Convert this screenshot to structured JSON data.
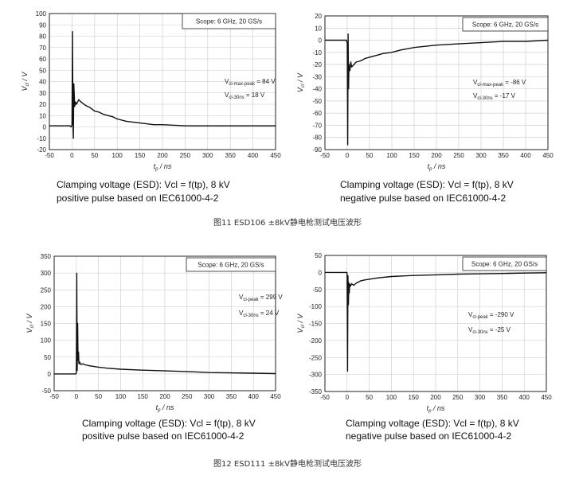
{
  "figure_captions": [
    "图11 ESD106 ±8kV静电枪测试电压波形",
    "图12 ESD111 ±8kV静电枪测试电压波形"
  ],
  "chart_data": [
    {
      "type": "line",
      "scope_label": "Scope: 6 GHz, 20 GS/s",
      "ylabel_main": "V",
      "ylabel_sub": "cl",
      "ylabel_unit": " / V",
      "xlabel_main": "t",
      "xlabel_sub": "p",
      "xlabel_unit": " / ns",
      "xlim": [
        -50,
        450
      ],
      "ylim": [
        -20,
        100
      ],
      "xticks": [
        -50,
        0,
        50,
        100,
        150,
        200,
        250,
        300,
        350,
        400,
        450
      ],
      "yticks": [
        -20,
        -10,
        0,
        10,
        20,
        30,
        40,
        50,
        60,
        70,
        80,
        90,
        100
      ],
      "annotations": [
        {
          "main": "V",
          "sub": "cl-max-peak",
          "rest": " = 84 V"
        },
        {
          "main": "V",
          "sub": "cl-30ns",
          "rest": " = 18 V"
        }
      ],
      "caption": [
        "Clamping voltage (ESD): Vcl = f(tp), 8 kV",
        "positive pulse based on IEC61000-4-2"
      ],
      "series": [
        {
          "x": [
            -50,
            -5,
            -2,
            0,
            1,
            2,
            3,
            4,
            6,
            8,
            10,
            15,
            20,
            30,
            40,
            50,
            60,
            70,
            80,
            90,
            100,
            120,
            140,
            160,
            180,
            200,
            250,
            300,
            350,
            400,
            450
          ],
          "y": [
            1,
            1,
            0,
            2,
            84,
            10,
            -10,
            38,
            18,
            22,
            20,
            24,
            22,
            19,
            17,
            14,
            13,
            11,
            10,
            9,
            7,
            5,
            4,
            3,
            2,
            2,
            1,
            1,
            1,
            1,
            1
          ]
        }
      ]
    },
    {
      "type": "line",
      "scope_label": "Scope: 6 GHz, 20 GS/s",
      "ylabel_main": "V",
      "ylabel_sub": "cl",
      "ylabel_unit": " / V",
      "xlabel_main": "t",
      "xlabel_sub": "p",
      "xlabel_unit": " / ns",
      "xlim": [
        -50,
        450
      ],
      "ylim": [
        -90,
        20
      ],
      "xticks": [
        -50,
        0,
        50,
        100,
        150,
        200,
        250,
        300,
        350,
        400,
        450
      ],
      "yticks": [
        -90,
        -80,
        -70,
        -60,
        -50,
        -40,
        -30,
        -20,
        -10,
        0,
        10,
        20
      ],
      "annotations": [
        {
          "main": "V",
          "sub": "cl-max-peak",
          "rest": " = -86 V"
        },
        {
          "main": "V",
          "sub": "cl-30ns",
          "rest": " = -17 V"
        }
      ],
      "caption": [
        "Clamping voltage (ESD): Vcl = f(tp), 8 kV",
        "negative pulse based on IEC61000-4-2"
      ],
      "series": [
        {
          "x": [
            -50,
            -5,
            -2,
            0,
            1,
            2,
            3,
            4,
            6,
            8,
            10,
            15,
            20,
            30,
            40,
            50,
            60,
            80,
            100,
            120,
            150,
            200,
            250,
            300,
            350,
            400,
            450
          ],
          "y": [
            0,
            0,
            0,
            -2,
            -86,
            5,
            -40,
            -20,
            -25,
            -18,
            -22,
            -20,
            -18,
            -17,
            -15,
            -14,
            -13,
            -11,
            -10,
            -8,
            -6,
            -4,
            -3,
            -2,
            -1,
            -1,
            0
          ]
        }
      ]
    },
    {
      "type": "line",
      "scope_label": "Scope: 6 GHz, 20 GS/s",
      "ylabel_main": "V",
      "ylabel_sub": "cl",
      "ylabel_unit": " / V",
      "xlabel_main": "t",
      "xlabel_sub": "p",
      "xlabel_unit": " / ns",
      "xlim": [
        -50,
        450
      ],
      "ylim": [
        -50,
        350
      ],
      "xticks": [
        -50,
        0,
        50,
        100,
        150,
        200,
        250,
        300,
        350,
        400,
        450
      ],
      "yticks": [
        -50,
        0,
        50,
        100,
        150,
        200,
        250,
        300,
        350
      ],
      "annotations": [
        {
          "main": "V",
          "sub": "cl-peak",
          "rest": " = 299 V"
        },
        {
          "main": "V",
          "sub": "cl-30ns",
          "rest": " = 24 V"
        }
      ],
      "caption": [
        "Clamping voltage (ESD): Vcl = f(tp), 8 kV",
        "positive pulse based on IEC61000-4-2"
      ],
      "series": [
        {
          "x": [
            -50,
            -3,
            -1,
            0,
            1,
            2,
            3,
            4,
            5,
            6,
            8,
            10,
            15,
            20,
            30,
            40,
            50,
            70,
            100,
            150,
            200,
            250,
            300,
            350,
            400,
            450
          ],
          "y": [
            0,
            0,
            0,
            2,
            299,
            10,
            150,
            40,
            65,
            30,
            35,
            28,
            30,
            27,
            24,
            22,
            20,
            17,
            14,
            11,
            9,
            7,
            4,
            3,
            2,
            1
          ]
        }
      ]
    },
    {
      "type": "line",
      "scope_label": "Scope: 6 GHz, 20 GS/s",
      "ylabel_main": "V",
      "ylabel_sub": "cl",
      "ylabel_unit": " / V",
      "xlabel_main": "t",
      "xlabel_sub": "p",
      "xlabel_unit": " / ns",
      "xlim": [
        -50,
        450
      ],
      "ylim": [
        -350,
        50
      ],
      "xticks": [
        -50,
        0,
        50,
        100,
        150,
        200,
        250,
        300,
        350,
        400,
        450
      ],
      "yticks": [
        -350,
        -300,
        -250,
        -200,
        -150,
        -100,
        -50,
        0,
        50
      ],
      "annotations": [
        {
          "main": "V",
          "sub": "cl-peak",
          "rest": " = -290 V"
        },
        {
          "main": "V",
          "sub": "cl-30ns",
          "rest": " = -25 V"
        }
      ],
      "caption": [
        "Clamping voltage (ESD): Vcl = f(tp), 8 kV",
        "negative pulse based on IEC61000-4-2"
      ],
      "series": [
        {
          "x": [
            -50,
            -3,
            -1,
            0,
            1,
            2,
            3,
            4,
            5,
            6,
            8,
            10,
            15,
            20,
            30,
            40,
            50,
            70,
            100,
            150,
            200,
            250,
            300,
            350,
            400,
            450
          ],
          "y": [
            0,
            0,
            0,
            -2,
            -290,
            -10,
            -95,
            -30,
            -60,
            -35,
            -40,
            -33,
            -38,
            -32,
            -25,
            -22,
            -20,
            -16,
            -12,
            -9,
            -7,
            -5,
            -4,
            -3,
            -2,
            -1
          ]
        }
      ]
    }
  ]
}
